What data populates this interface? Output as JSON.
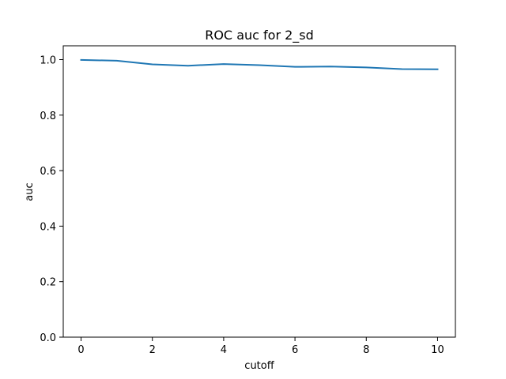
{
  "chart_data": {
    "type": "line",
    "title": "ROC auc for 2_sd",
    "xlabel": "cutoff",
    "ylabel": "auc",
    "xlim": [
      -0.5,
      10.5
    ],
    "ylim": [
      0.0,
      1.0
    ],
    "xticks": [
      0,
      2,
      4,
      6,
      8,
      10
    ],
    "yticks": [
      0.0,
      0.2,
      0.4,
      0.6,
      0.8,
      1.0
    ],
    "xtick_labels": [
      "0",
      "2",
      "4",
      "6",
      "8",
      "10"
    ],
    "ytick_labels": [
      "0.0",
      "0.2",
      "0.4",
      "0.6",
      "0.8",
      "1.0"
    ],
    "grid": false,
    "series": [
      {
        "color": "#1f77b4",
        "x": [
          0,
          1,
          2,
          3,
          4,
          5,
          6,
          7,
          8,
          9,
          10
        ],
        "y": [
          0.999,
          0.996,
          0.983,
          0.978,
          0.984,
          0.98,
          0.974,
          0.975,
          0.972,
          0.966,
          0.965
        ]
      }
    ]
  }
}
